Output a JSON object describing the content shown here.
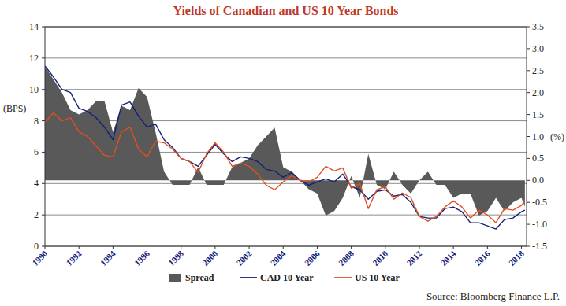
{
  "chart_data": {
    "type": "line",
    "title": "Yields of Canadian and US 10 Year Bonds",
    "y_label": "(BPS)",
    "y2_label": "(%)",
    "source": "Source: Bloomberg Finance L.P.",
    "x": [
      1990.0,
      1990.5,
      1991.0,
      1991.5,
      1992.0,
      1992.5,
      1993.0,
      1993.5,
      1994.0,
      1994.5,
      1995.0,
      1995.5,
      1996.0,
      1996.5,
      1997.0,
      1997.5,
      1998.0,
      1998.5,
      1999.0,
      1999.5,
      2000.0,
      2000.5,
      2001.0,
      2001.5,
      2002.0,
      2002.5,
      2003.0,
      2003.5,
      2004.0,
      2004.5,
      2005.0,
      2005.5,
      2006.0,
      2006.5,
      2007.0,
      2007.5,
      2008.0,
      2008.5,
      2009.0,
      2009.5,
      2010.0,
      2010.5,
      2011.0,
      2011.5,
      2012.0,
      2012.5,
      2013.0,
      2013.5,
      2014.0,
      2014.5,
      2015.0,
      2015.5,
      2016.0,
      2016.5,
      2017.0,
      2017.5,
      2018.0,
      2018.2
    ],
    "series": [
      {
        "name": "Spread",
        "type": "area",
        "axis": "y2",
        "color": "#595959",
        "values": [
          2.6,
          2.3,
          2.0,
          1.6,
          1.5,
          1.6,
          1.8,
          1.8,
          1.1,
          1.7,
          1.6,
          2.1,
          1.9,
          1.1,
          0.2,
          -0.1,
          -0.1,
          -0.1,
          0.3,
          -0.1,
          -0.1,
          -0.1,
          0.3,
          0.4,
          0.5,
          0.8,
          1.0,
          1.2,
          0.3,
          0.2,
          0.0,
          -0.2,
          -0.3,
          -0.8,
          -0.7,
          -0.4,
          0.1,
          -0.4,
          0.6,
          -0.1,
          -0.2,
          0.2,
          -0.1,
          -0.3,
          0.0,
          0.2,
          -0.1,
          -0.1,
          -0.4,
          -0.3,
          -0.3,
          -0.8,
          -0.7,
          -0.4,
          -0.7,
          -0.5,
          -0.4,
          -0.6
        ]
      },
      {
        "name": "CAD 10 Year",
        "type": "line",
        "color": "#14217a",
        "values": [
          11.5,
          10.8,
          10.0,
          9.8,
          8.8,
          8.6,
          8.2,
          7.6,
          6.8,
          9.0,
          9.2,
          8.3,
          7.6,
          7.8,
          6.8,
          6.3,
          5.6,
          5.4,
          5.1,
          5.8,
          6.5,
          5.9,
          5.4,
          5.7,
          5.6,
          5.4,
          4.9,
          4.8,
          4.4,
          4.7,
          4.2,
          3.9,
          4.1,
          4.3,
          4.1,
          4.6,
          3.8,
          3.6,
          3.0,
          3.5,
          3.6,
          3.2,
          3.3,
          2.8,
          1.9,
          1.8,
          1.8,
          2.4,
          2.5,
          2.2,
          1.5,
          1.5,
          1.3,
          1.1,
          1.7,
          1.8,
          2.2,
          2.3
        ]
      },
      {
        "name": "US 10 Year",
        "type": "line",
        "color": "#e0501e",
        "values": [
          7.9,
          8.5,
          8.0,
          8.2,
          7.3,
          7.0,
          6.4,
          5.8,
          5.7,
          7.3,
          7.6,
          6.2,
          5.7,
          6.7,
          6.6,
          6.2,
          5.6,
          5.4,
          4.7,
          5.9,
          6.6,
          6.0,
          5.1,
          5.3,
          5.1,
          4.6,
          3.9,
          3.6,
          4.1,
          4.5,
          4.2,
          4.1,
          4.4,
          5.1,
          4.8,
          5.0,
          3.7,
          4.0,
          2.4,
          3.6,
          3.8,
          3.0,
          3.4,
          3.1,
          1.9,
          1.6,
          1.9,
          2.5,
          2.9,
          2.5,
          1.8,
          2.3,
          2.0,
          1.5,
          2.4,
          2.3,
          2.6,
          2.9
        ]
      }
    ],
    "xlim": [
      1990,
      2018.3
    ],
    "xticks": [
      1990,
      1992,
      1994,
      1996,
      1998,
      2000,
      2002,
      2004,
      2006,
      2008,
      2010,
      2012,
      2014,
      2016,
      2018
    ],
    "ylim": [
      0,
      14
    ],
    "yticks": [
      0,
      2,
      4,
      6,
      8,
      10,
      12,
      14
    ],
    "y2lim": [
      -1.5,
      3.5
    ],
    "y2ticks": [
      {
        "value": -1.5,
        "label": "-1.5"
      },
      {
        "value": -1,
        "label": "-1.0"
      },
      {
        "value": -0.5,
        "label": "-0.5"
      },
      {
        "value": 0,
        "label": "0.0"
      },
      {
        "value": 0.5,
        "label": "0.5"
      },
      {
        "value": 1,
        "label": "1.0"
      },
      {
        "value": 1.5,
        "label": "1.5"
      },
      {
        "value": 2,
        "label": "2.0"
      },
      {
        "value": 2.5,
        "label": "2.5"
      },
      {
        "value": 3,
        "label": "3.0"
      },
      {
        "value": 3.5,
        "label": "3.5"
      }
    ],
    "grid": true,
    "legend": "bottom"
  }
}
